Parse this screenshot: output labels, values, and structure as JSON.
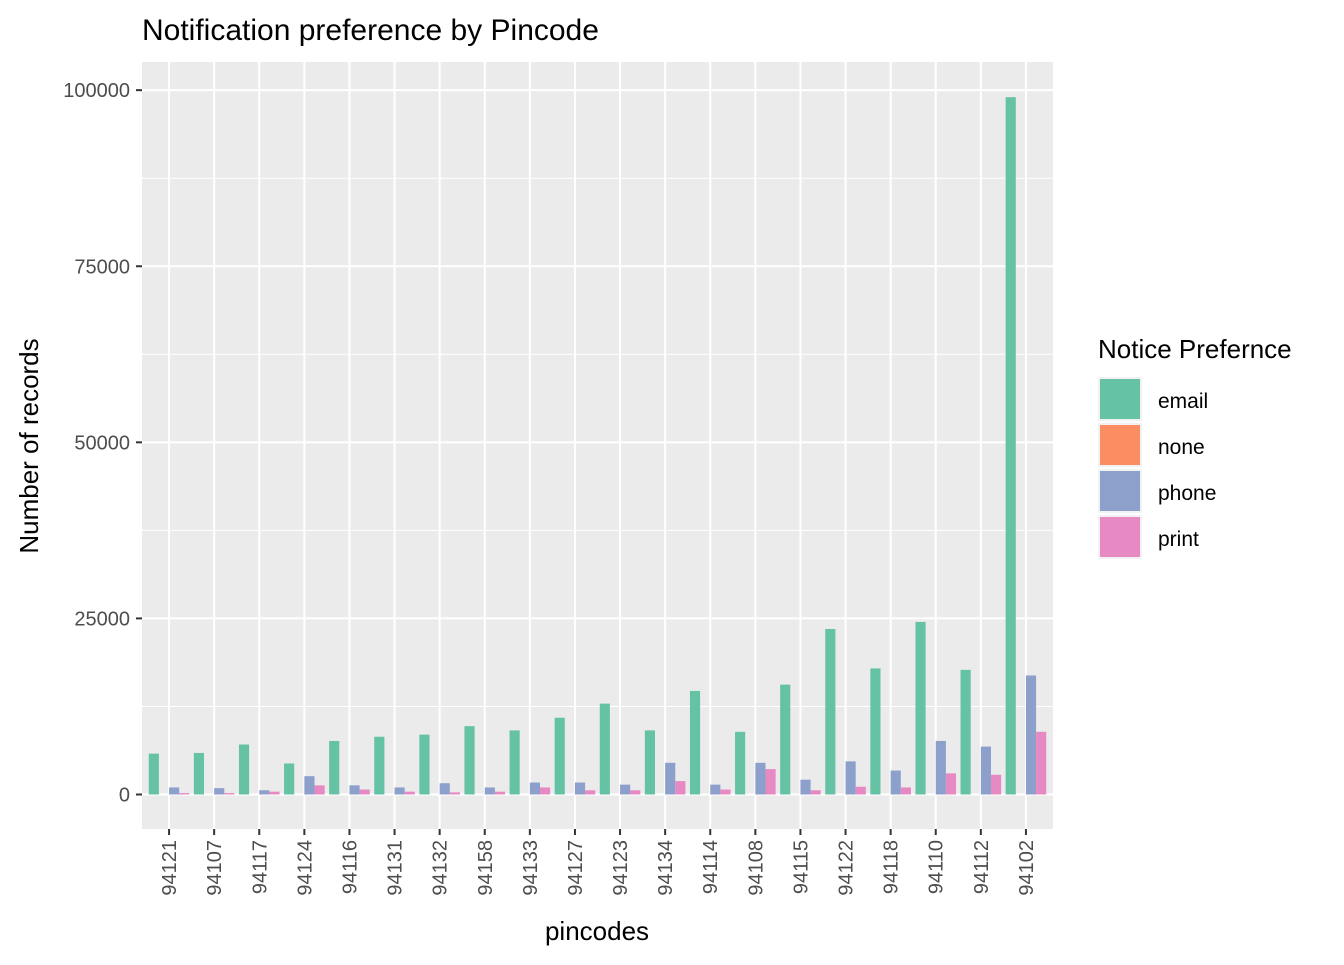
{
  "chart_data": {
    "type": "bar",
    "title": "Notification preference by Pincode",
    "xlabel": "pincodes",
    "ylabel": "Number of records",
    "categories": [
      "94121",
      "94107",
      "94117",
      "94124",
      "94116",
      "94131",
      "94132",
      "94158",
      "94133",
      "94127",
      "94123",
      "94134",
      "94114",
      "94108",
      "94115",
      "94122",
      "94118",
      "94110",
      "94112",
      "94102"
    ],
    "series": [
      {
        "name": "email",
        "color": "#66C2A5",
        "values": [
          5800,
          5900,
          7100,
          4400,
          7600,
          8200,
          8500,
          9700,
          9100,
          10900,
          12900,
          9100,
          14700,
          8900,
          15600,
          23500,
          17900,
          24500,
          17700,
          99000
        ]
      },
      {
        "name": "none",
        "color": "#FC8D62",
        "values": [
          0,
          0,
          0,
          0,
          0,
          0,
          0,
          0,
          0,
          0,
          0,
          0,
          0,
          0,
          0,
          0,
          0,
          0,
          0,
          0
        ]
      },
      {
        "name": "phone",
        "color": "#8DA0CB",
        "values": [
          1000,
          900,
          600,
          2600,
          1300,
          1000,
          1600,
          1000,
          1700,
          1700,
          1400,
          4500,
          1400,
          4500,
          2100,
          4700,
          3400,
          7600,
          6800,
          16900
        ]
      },
      {
        "name": "print",
        "color": "#E78AC3",
        "values": [
          200,
          200,
          400,
          1300,
          700,
          400,
          300,
          400,
          1000,
          600,
          600,
          1900,
          700,
          3600,
          600,
          1100,
          1000,
          3000,
          2800,
          8900
        ]
      }
    ],
    "y_ticks": [
      0,
      25000,
      50000,
      75000,
      100000
    ],
    "y_tick_labels": [
      "0",
      "25000",
      "50000",
      "75000",
      "100000"
    ],
    "ylim": [
      -4900,
      104000
    ],
    "legend": {
      "title": "Notice Prefernce",
      "position": "right"
    },
    "grid": true,
    "panel_background": "#EBEBEB",
    "grid_color": "#FFFFFF"
  }
}
